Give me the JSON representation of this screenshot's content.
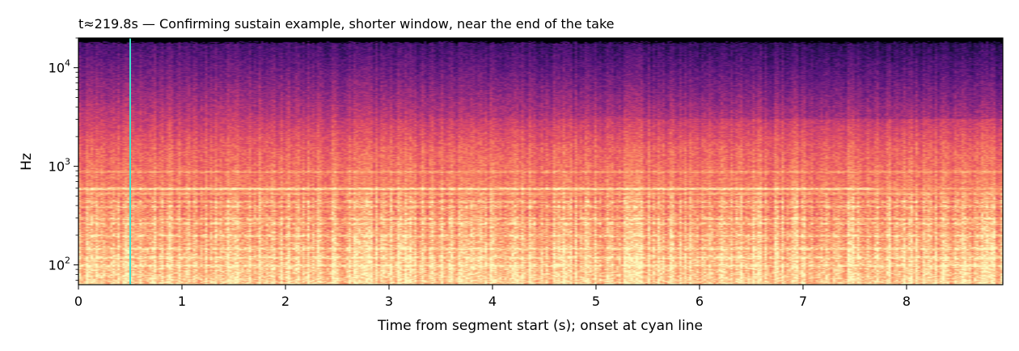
{
  "chart_data": {
    "type": "heatmap",
    "title": "t≈219.8s — Confirming sustain example, shorter window, near the end of the take",
    "xlabel": "Time from segment start (s); onset at cyan line",
    "ylabel": "Hz",
    "x_scale": "linear",
    "y_scale": "log",
    "xlim": [
      0,
      8.93
    ],
    "ylim": [
      63,
      20000
    ],
    "x_ticks": [
      0,
      1,
      2,
      3,
      4,
      5,
      6,
      7,
      8
    ],
    "y_ticks": [
      {
        "value": 100,
        "label": "10",
        "exp": "2"
      },
      {
        "value": 1000,
        "label": "10",
        "exp": "3"
      },
      {
        "value": 10000,
        "label": "10",
        "exp": "4"
      }
    ],
    "colormap": "magma",
    "grid": false,
    "onset_marker": {
      "x": 0.5,
      "color": "#40e0d0"
    },
    "sustained_partials_hz": [
      98,
      118,
      147,
      196,
      262,
      294,
      392,
      440,
      523,
      587,
      880
    ],
    "description_of_energy": "Strong low-frequency energy below ~300 Hz across the segment, bright sustained partial near 587 Hz, energy decaying toward ~18 kHz"
  }
}
